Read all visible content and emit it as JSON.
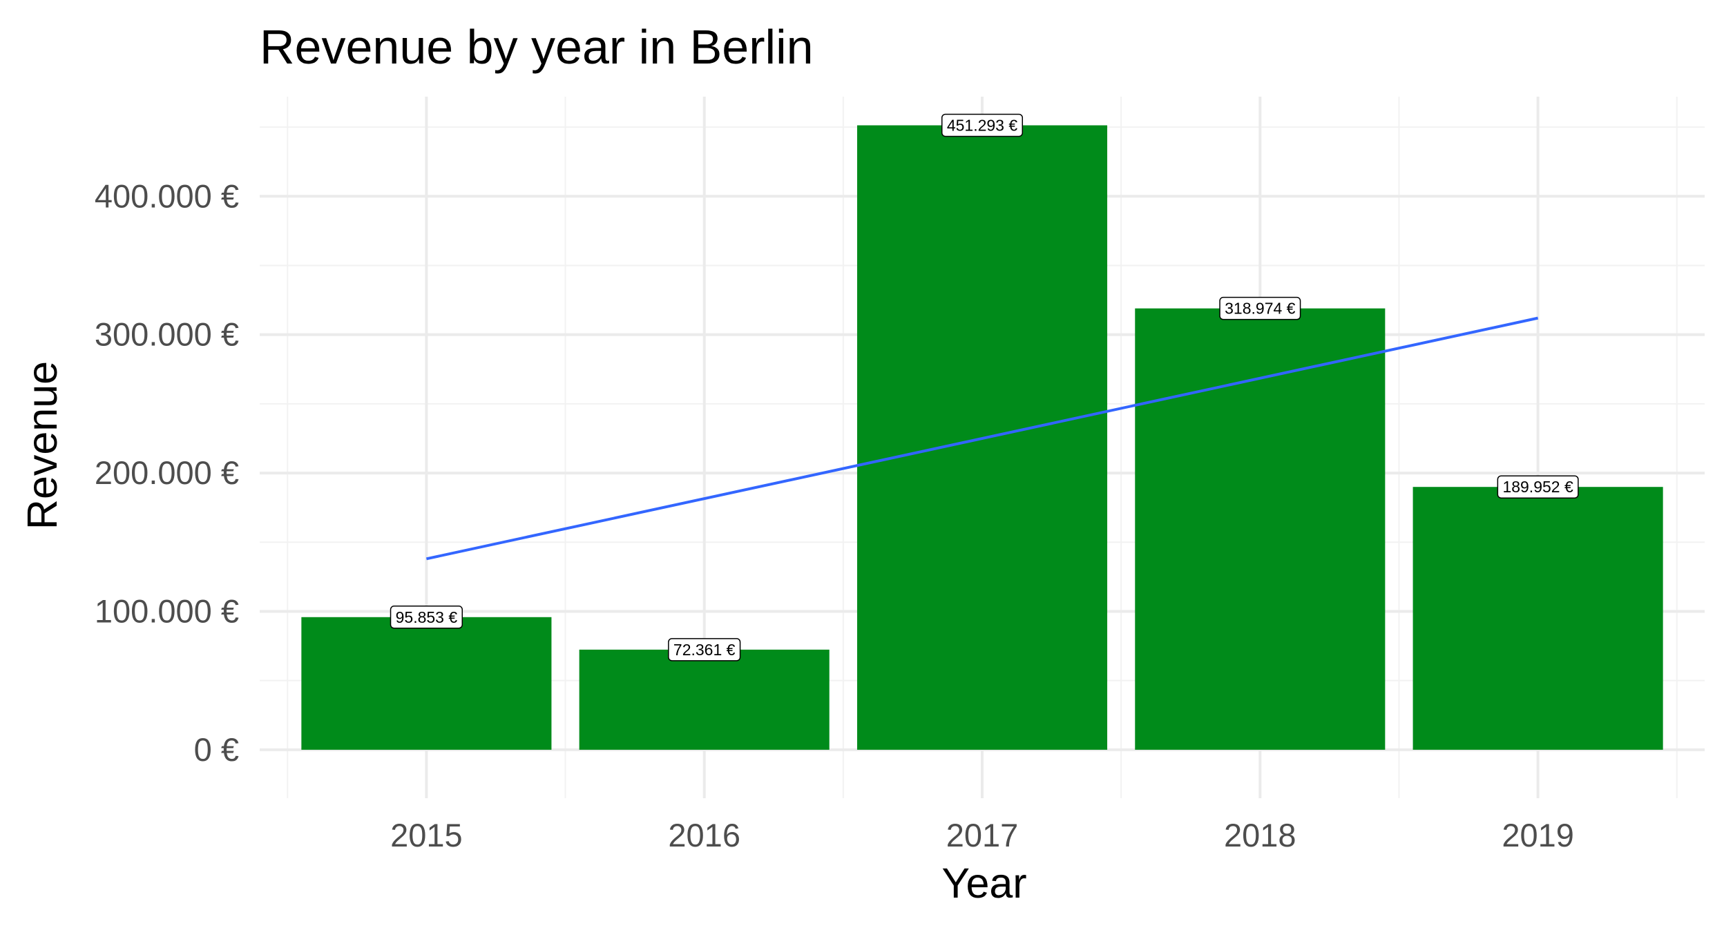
{
  "chart_data": {
    "type": "bar",
    "title": "Revenue by year in Berlin",
    "xlabel": "Year",
    "ylabel": "Revenue",
    "categories": [
      "2015",
      "2016",
      "2017",
      "2018",
      "2019"
    ],
    "values": [
      95853,
      72361,
      451293,
      318974,
      189952
    ],
    "value_labels": [
      "95.853 €",
      "72.361 €",
      "451.293 €",
      "318.974 €",
      "189.952 €"
    ],
    "ylim": [
      -35000,
      472000
    ],
    "y_ticks": [
      0,
      100000,
      200000,
      300000,
      400000
    ],
    "y_tick_labels": [
      "0 €",
      "100.000 €",
      "200.000 €",
      "300.000 €",
      "400.000 €"
    ],
    "y_minor_ticks": [
      50000,
      150000,
      250000,
      350000,
      450000
    ],
    "grid": true,
    "legend": "none",
    "trend_line": {
      "type": "linear",
      "start": {
        "x": "2015",
        "y": 138000
      },
      "end": {
        "x": "2019",
        "y": 312000
      }
    },
    "colors": {
      "bar": "#008b1a",
      "trend_line": "#3366ff",
      "grid_major": "#ebebeb",
      "grid_minor": "#f2f2f2",
      "tick_text": "#4d4d4d",
      "title_text": "#000000"
    }
  }
}
